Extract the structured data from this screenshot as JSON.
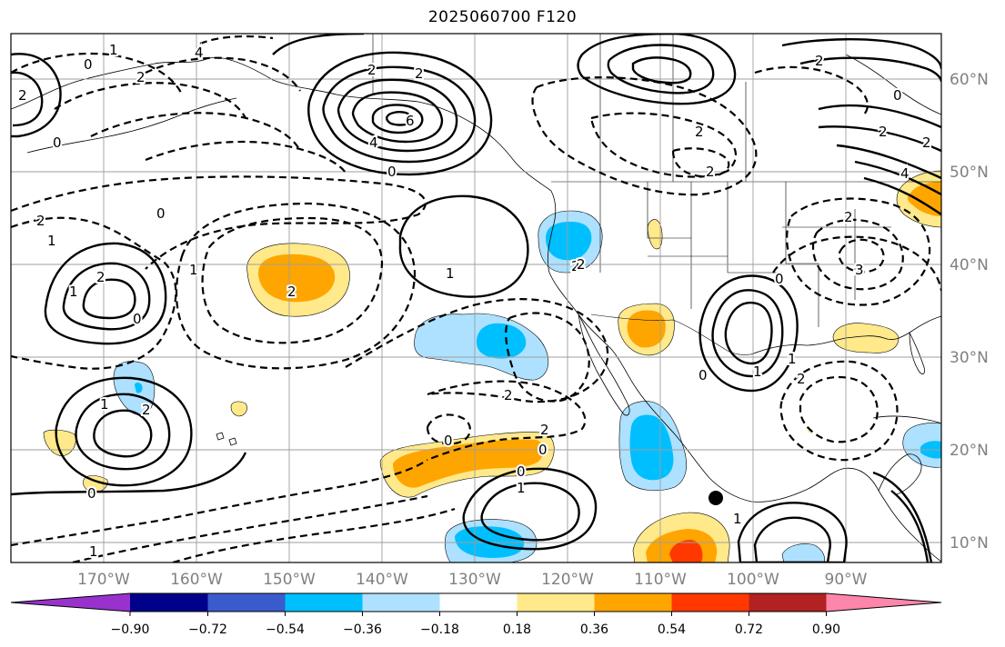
{
  "title": "2025060700 F120",
  "map": {
    "lat_ticks": [
      "60°N",
      "50°N",
      "40°N",
      "30°N",
      "20°N",
      "10°N"
    ],
    "lon_ticks": [
      "170°W",
      "160°W",
      "150°W",
      "140°W",
      "130°W",
      "120°W",
      "110°W",
      "100°W",
      "90°W"
    ],
    "contour_labels": [
      "4",
      "2",
      "0",
      "1",
      "2",
      "6",
      "4",
      "2",
      "0",
      "2",
      "2",
      "1",
      "1",
      "0",
      "2",
      "0",
      "1",
      "1",
      "2",
      "2",
      "2",
      "2",
      "0",
      "0",
      "1",
      "0",
      "1",
      "1",
      "0",
      "1",
      "2",
      "2",
      "0",
      "2",
      "1",
      "0",
      "2",
      "2",
      "3",
      "4",
      "2",
      "2",
      "0",
      "2",
      "1",
      "0",
      "2"
    ],
    "marker": "black-dot"
  },
  "colorbar": {
    "colors": [
      "#9932CC",
      "#00008B",
      "#3A5BCB",
      "#00BFFF",
      "#ADE1FF",
      "#FFFFFF",
      "#FFE98A",
      "#FFA500",
      "#FF3800",
      "#B22222",
      "#FF86AB"
    ],
    "labels": [
      "−0.90",
      "−0.72",
      "−0.54",
      "−0.36",
      "−0.18",
      "0.18",
      "0.36",
      "0.54",
      "0.72",
      "0.90"
    ]
  }
}
